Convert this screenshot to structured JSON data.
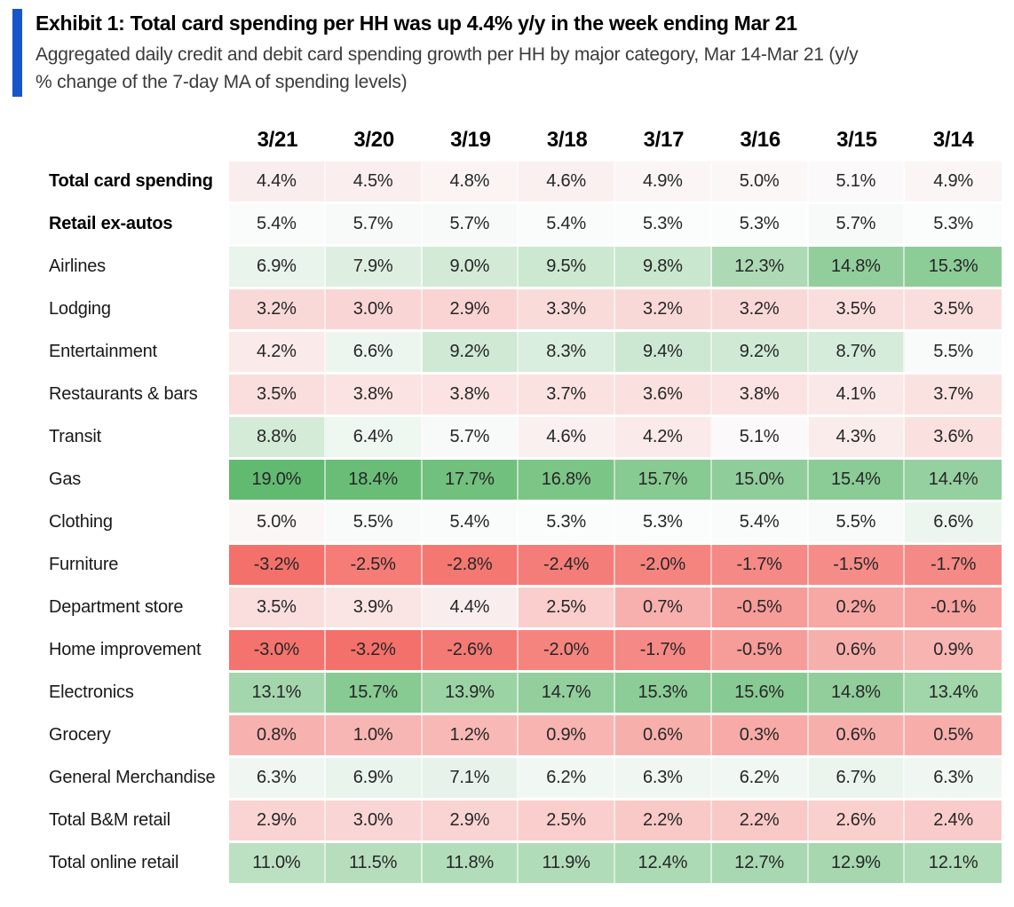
{
  "exhibit": {
    "title": "Exhibit 1: Total card spending per HH was up 4.4% y/y in the week ending Mar 21",
    "subtitle_lines": [
      "Aggregated daily credit and debit card spending growth per HH by major category, Mar 14-Mar 21 (y/y",
      "% change of the 7-day MA of spending levels)"
    ],
    "accent_bar_color": "#1656c9"
  },
  "chart_data": {
    "type": "heatmap",
    "title": "Exhibit 1: Total card spending per HH was up 4.4% y/y in the week ending Mar 21",
    "subtitle": "Aggregated daily credit and debit card spending growth per HH by major category, Mar 14-Mar 21 (y/y % change of the 7-day MA of spending levels)",
    "value_format": "percent_1dp",
    "columns": [
      "3/21",
      "3/20",
      "3/19",
      "3/18",
      "3/17",
      "3/16",
      "3/15",
      "3/14"
    ],
    "rows": [
      {
        "label": "Total card spending",
        "bold": true,
        "values": [
          4.4,
          4.5,
          4.8,
          4.6,
          4.9,
          5.0,
          5.1,
          4.9
        ]
      },
      {
        "label": "Retail ex-autos",
        "bold": true,
        "values": [
          5.4,
          5.7,
          5.7,
          5.4,
          5.3,
          5.3,
          5.7,
          5.3
        ]
      },
      {
        "label": "Airlines",
        "bold": false,
        "values": [
          6.9,
          7.9,
          9.0,
          9.5,
          9.8,
          12.3,
          14.8,
          15.3
        ]
      },
      {
        "label": "Lodging",
        "bold": false,
        "values": [
          3.2,
          3.0,
          2.9,
          3.3,
          3.2,
          3.2,
          3.5,
          3.5
        ]
      },
      {
        "label": "Entertainment",
        "bold": false,
        "values": [
          4.2,
          6.6,
          9.2,
          8.3,
          9.4,
          9.2,
          8.7,
          5.5
        ]
      },
      {
        "label": "Restaurants & bars",
        "bold": false,
        "values": [
          3.5,
          3.8,
          3.8,
          3.7,
          3.6,
          3.8,
          4.1,
          3.7
        ]
      },
      {
        "label": "Transit",
        "bold": false,
        "values": [
          8.8,
          6.4,
          5.7,
          4.6,
          4.2,
          5.1,
          4.3,
          3.6
        ]
      },
      {
        "label": "Gas",
        "bold": false,
        "values": [
          19.0,
          18.4,
          17.7,
          16.8,
          15.7,
          15.0,
          15.4,
          14.4
        ]
      },
      {
        "label": "Clothing",
        "bold": false,
        "values": [
          5.0,
          5.5,
          5.4,
          5.3,
          5.3,
          5.4,
          5.5,
          6.6
        ]
      },
      {
        "label": "Furniture",
        "bold": false,
        "values": [
          -3.2,
          -2.5,
          -2.8,
          -2.4,
          -2.0,
          -1.7,
          -1.5,
          -1.7
        ]
      },
      {
        "label": "Department store",
        "bold": false,
        "values": [
          3.5,
          3.9,
          4.4,
          2.5,
          0.7,
          -0.5,
          0.2,
          -0.1
        ]
      },
      {
        "label": "Home improvement",
        "bold": false,
        "values": [
          -3.0,
          -3.2,
          -2.6,
          -2.0,
          -1.7,
          -0.5,
          0.6,
          0.9
        ]
      },
      {
        "label": "Electronics",
        "bold": false,
        "values": [
          13.1,
          15.7,
          13.9,
          14.7,
          15.3,
          15.6,
          14.8,
          13.4
        ]
      },
      {
        "label": "Grocery",
        "bold": false,
        "values": [
          0.8,
          1.0,
          1.2,
          0.9,
          0.6,
          0.3,
          0.6,
          0.5
        ]
      },
      {
        "label": "General Merchandise",
        "bold": false,
        "values": [
          6.3,
          6.9,
          7.1,
          6.2,
          6.3,
          6.2,
          6.7,
          6.3
        ]
      },
      {
        "label": "Total B&M retail",
        "bold": false,
        "values": [
          2.9,
          3.0,
          2.9,
          2.5,
          2.2,
          2.2,
          2.6,
          2.4
        ]
      },
      {
        "label": "Total online retail",
        "bold": false,
        "values": [
          11.0,
          11.5,
          11.8,
          11.9,
          12.4,
          12.7,
          12.9,
          12.1
        ]
      }
    ],
    "colorscale": {
      "min": -3.2,
      "mid": 5.3,
      "max": 19.0,
      "min_color": "#f4706b",
      "mid_color": "#fbfcfc",
      "max_color": "#62ba71"
    }
  }
}
